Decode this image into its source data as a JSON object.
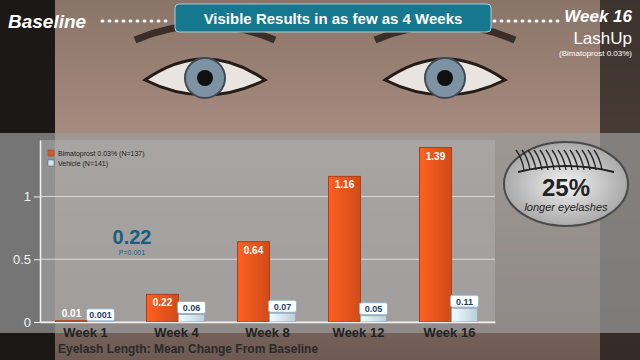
{
  "chart_data": {
    "type": "bar",
    "title": "Visible Results in as few as 4 Weeks",
    "x_label": "Eyelash Length: Mean Change From Baseline",
    "categories": [
      "Week 1",
      "Week 4",
      "Week 8",
      "Week 12",
      "Week 16"
    ],
    "series": [
      {
        "name": "Bimatoprost 0.03% (N=137)",
        "color": "#e8531c",
        "values": [
          0.01,
          0.22,
          0.64,
          1.16,
          1.39
        ]
      },
      {
        "name": "Vehicle (N=141)",
        "color": "#cfe4f4",
        "values": [
          0.001,
          0.06,
          0.07,
          0.05,
          0.11
        ]
      }
    ],
    "ylim": [
      0,
      1.45
    ],
    "yticks": [
      0,
      0.5,
      1
    ],
    "grid": true,
    "legend": "upper left",
    "data_labels": true,
    "annotations": [
      "Baseline",
      "Week 16",
      "LashUp",
      "(Bimatoprost 0.03%)",
      "0.22",
      "P=0.001",
      "25%",
      "longer eyelashes"
    ]
  }
}
